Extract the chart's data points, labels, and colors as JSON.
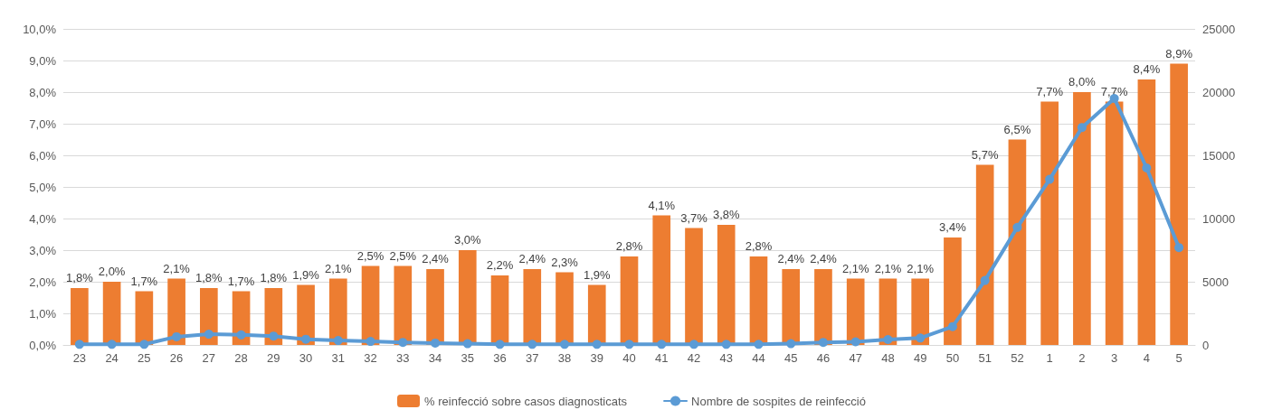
{
  "chart_data": {
    "type": "bar",
    "categories": [
      "23",
      "24",
      "25",
      "26",
      "27",
      "28",
      "29",
      "30",
      "31",
      "32",
      "33",
      "34",
      "35",
      "36",
      "37",
      "38",
      "39",
      "40",
      "41",
      "42",
      "43",
      "44",
      "45",
      "46",
      "47",
      "48",
      "49",
      "50",
      "51",
      "52",
      "1",
      "2",
      "3",
      "4",
      "5"
    ],
    "series": [
      {
        "name": "% reinfecció sobre casos diagnosticats",
        "color": "#ed7d31",
        "values": [
          1.8,
          2.0,
          1.7,
          2.1,
          1.8,
          1.7,
          1.8,
          1.9,
          2.1,
          2.5,
          2.5,
          2.4,
          3.0,
          2.2,
          2.4,
          2.3,
          1.9,
          2.8,
          4.1,
          3.7,
          3.8,
          2.8,
          2.4,
          2.4,
          2.1,
          2.1,
          2.1,
          3.4,
          5.7,
          6.5,
          7.7,
          8.0,
          7.7,
          8.4,
          8.9
        ],
        "value_labels": [
          "1,8%",
          "2,0%",
          "1,7%",
          "2,1%",
          "1,8%",
          "1,7%",
          "1,8%",
          "1,9%",
          "2,1%",
          "2,5%",
          "2,5%",
          "2,4%",
          "3,0%",
          "2,2%",
          "2,4%",
          "2,3%",
          "1,9%",
          "2,8%",
          "4,1%",
          "3,7%",
          "3,8%",
          "2,8%",
          "2,4%",
          "2,4%",
          "2,1%",
          "2,1%",
          "2,1%",
          "3,4%",
          "5,7%",
          "6,5%",
          "7,7%",
          "8,0%",
          "7,7%",
          "8,4%",
          "8,9%"
        ]
      },
      {
        "name": "Nombre de sospites de reinfecció",
        "type": "line",
        "axis": "y2",
        "color": "#5b9bd5",
        "values": [
          50,
          50,
          50,
          650,
          850,
          800,
          700,
          450,
          350,
          280,
          200,
          150,
          100,
          50,
          50,
          50,
          50,
          50,
          50,
          50,
          50,
          50,
          100,
          200,
          250,
          430,
          550,
          1450,
          5100,
          9300,
          13100,
          17200,
          19500,
          14000,
          7700
        ]
      }
    ],
    "ylim": [
      0,
      10
    ],
    "yticks": [
      {
        "value": 0,
        "label": "0,0%"
      },
      {
        "value": 1,
        "label": "1,0%"
      },
      {
        "value": 2,
        "label": "2,0%"
      },
      {
        "value": 3,
        "label": "3,0%"
      },
      {
        "value": 4,
        "label": "4,0%"
      },
      {
        "value": 5,
        "label": "5,0%"
      },
      {
        "value": 6,
        "label": "6,0%"
      },
      {
        "value": 7,
        "label": "7,0%"
      },
      {
        "value": 8,
        "label": "8,0%"
      },
      {
        "value": 9,
        "label": "9,0%"
      },
      {
        "value": 10,
        "label": "10,0%"
      }
    ],
    "y2lim": [
      0,
      25000
    ],
    "y2ticks": [
      0,
      5000,
      10000,
      15000,
      20000,
      25000
    ],
    "grid": "y",
    "legend": "bottom",
    "marker": "circle",
    "line_style": "solid"
  }
}
